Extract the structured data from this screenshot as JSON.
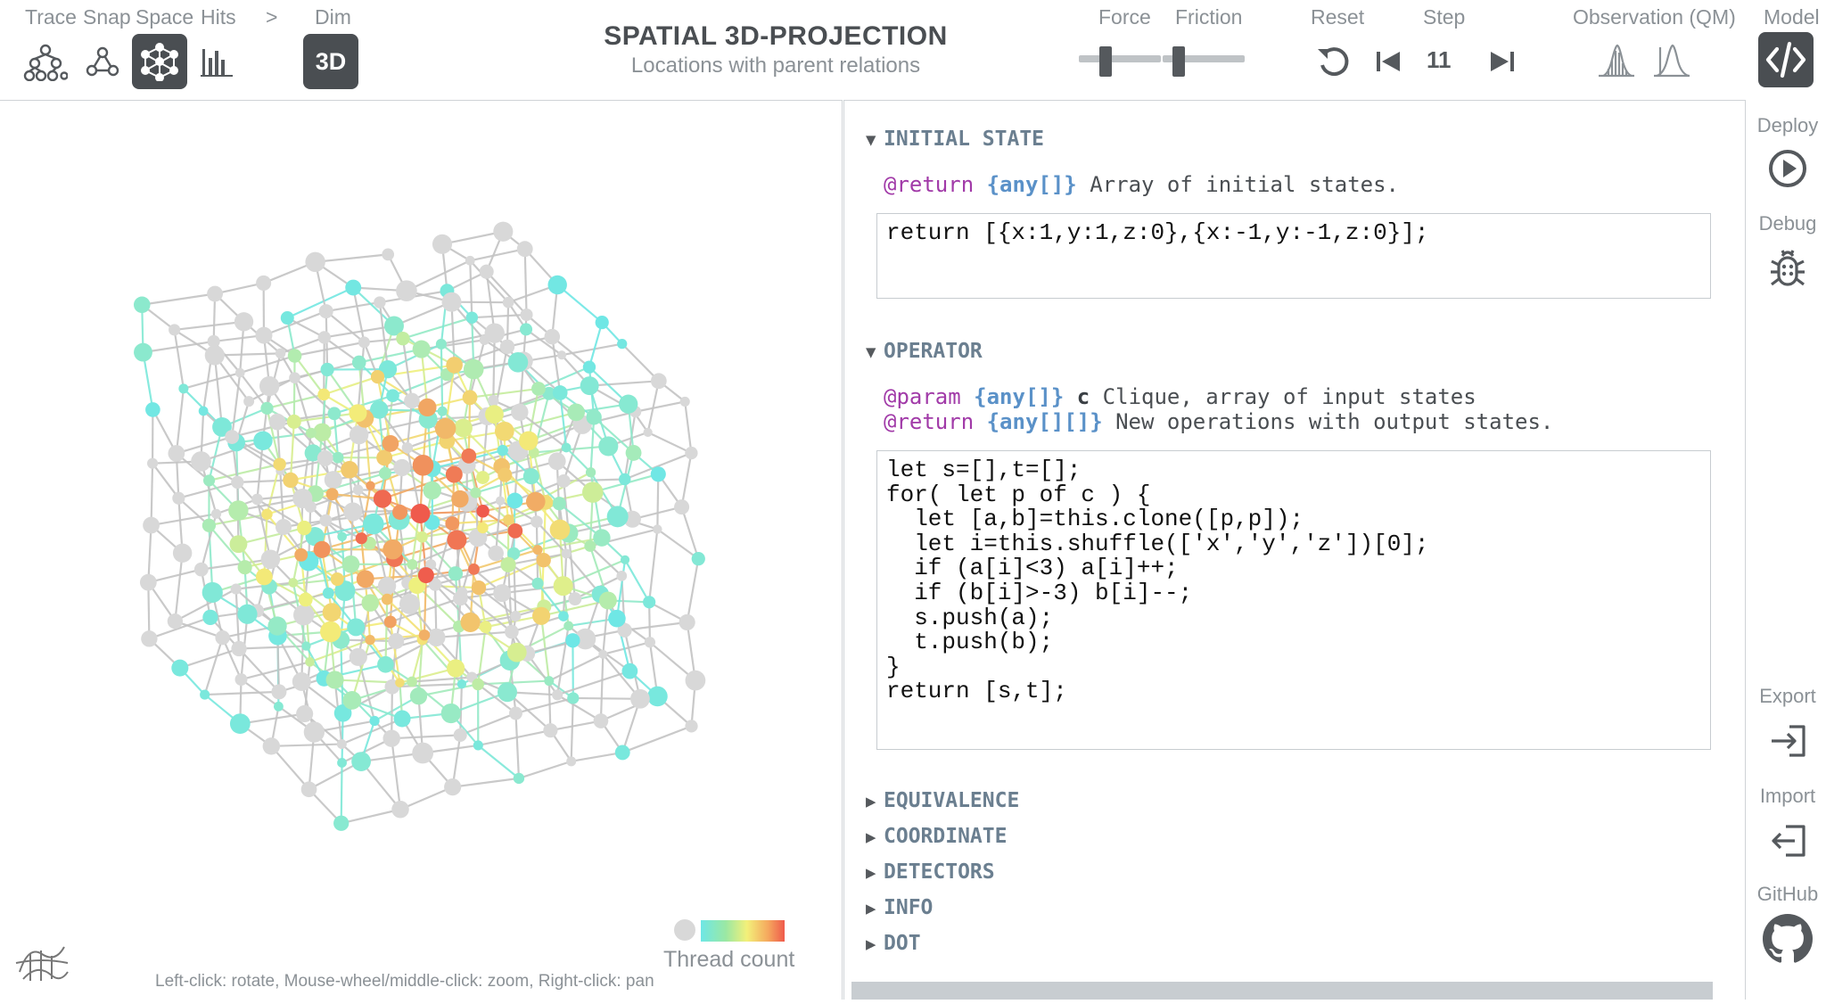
{
  "toolbar": {
    "trace_label": "Trace",
    "snap_label": "Snap",
    "space_label": "Space",
    "hits_label": "Hits",
    "arrow_label": ">",
    "dim_label": "Dim",
    "dim_value": "3D",
    "force_label": "Force",
    "friction_label": "Friction",
    "force_value": 0.33,
    "friction_value": 0.2,
    "reset_label": "Reset",
    "step_label": "Step",
    "step_value": "11",
    "observation_label": "Observation (QM)",
    "model_label": "Model"
  },
  "header": {
    "title": "SPATIAL 3D-PROJECTION",
    "subtitle": "Locations with parent relations"
  },
  "graph": {
    "legend_label": "Thread count",
    "hint": "Left-click: rotate, Mouse-wheel/middle-click: zoom, Right-click: pan",
    "colors": {
      "low": "#6ee7e6",
      "mid": "#f3f07a",
      "high": "#ef5a4c",
      "none": "#d8d8d8"
    }
  },
  "editor": {
    "initial_state": {
      "title": "INITIAL STATE",
      "doc_tag": "@return",
      "doc_type": "{any[]}",
      "doc_text": " Array of initial states.",
      "code": "return [{x:1,y:1,z:0},{x:-1,y:-1,z:0}];"
    },
    "operator": {
      "title": "OPERATOR",
      "doc1_tag": "@param",
      "doc1_type": "{any[]}",
      "doc1_name": "c",
      "doc1_text": " Clique, array of input states",
      "doc2_tag": "@return",
      "doc2_type": "{any[][]}",
      "doc2_text": " New operations with output states.",
      "code": "let s=[],t=[];\nfor( let p of c ) {\n  let [a,b]=this.clone([p,p]);\n  let i=this.shuffle(['x','y','z'])[0];\n  if (a[i]<3) a[i]++;\n  if (b[i]>-3) b[i]--;\n  s.push(a);\n  t.push(b);\n}\nreturn [s,t];"
    },
    "sections": [
      "EQUIVALENCE",
      "COORDINATE",
      "DETECTORS",
      "INFO",
      "DOT"
    ]
  },
  "right_rail": {
    "deploy_label": "Deploy",
    "debug_label": "Debug",
    "export_label": "Export",
    "import_label": "Import",
    "github_label": "GitHub"
  }
}
